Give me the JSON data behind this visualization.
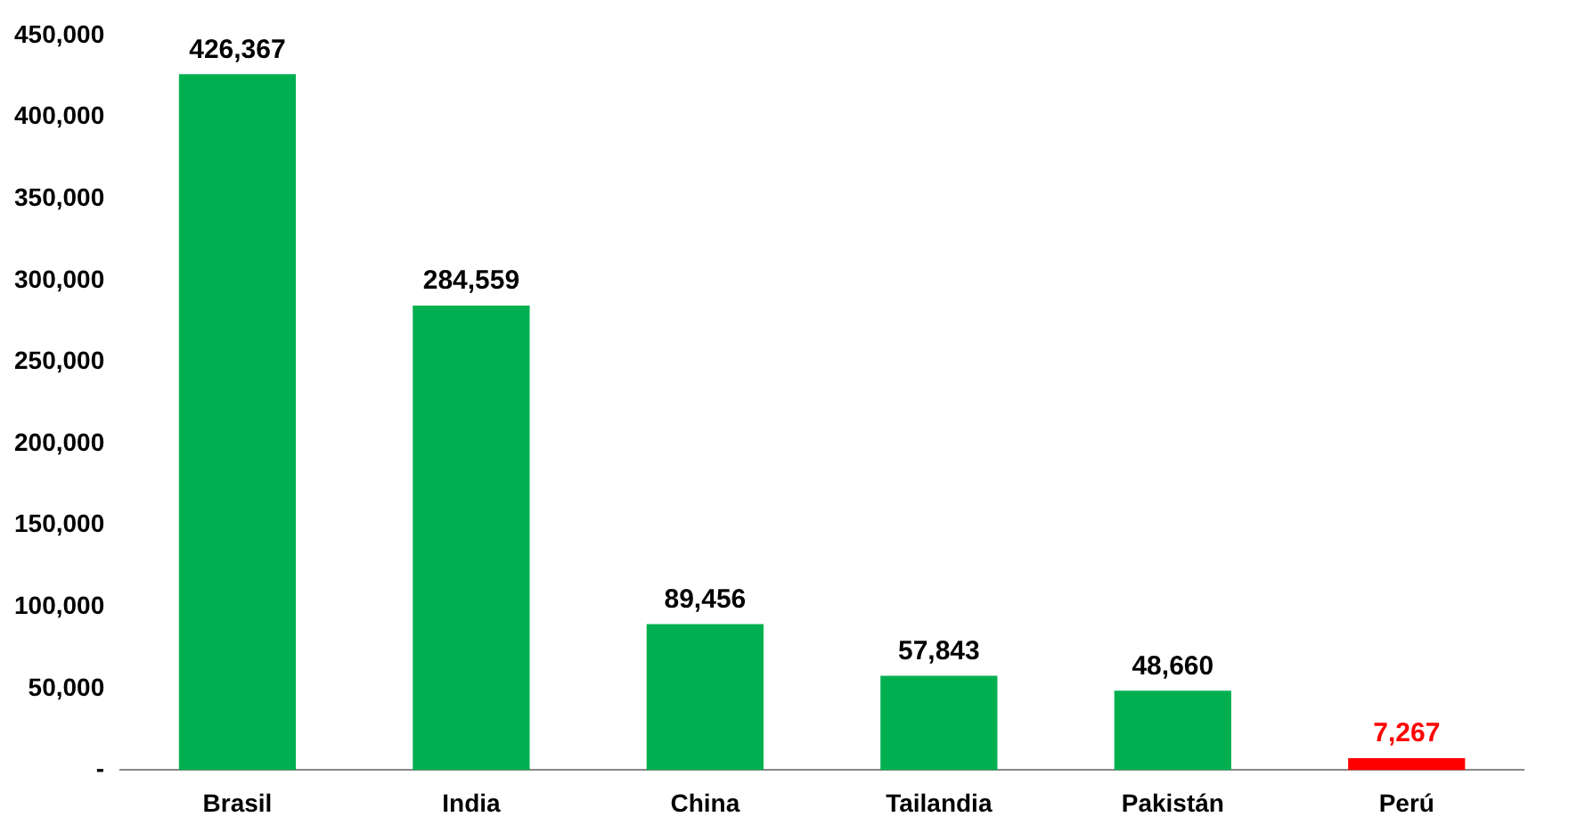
{
  "chart_data": {
    "type": "bar",
    "categories": [
      "Brasil",
      "India",
      "China",
      "Tailandia",
      "Pakistán",
      "Perú"
    ],
    "values": [
      426367,
      284559,
      89456,
      57843,
      48660,
      7267
    ],
    "colors": [
      "#00b050",
      "#00b050",
      "#00b050",
      "#00b050",
      "#00b050",
      "#ff0000"
    ],
    "value_labels": [
      "426,367",
      "284,559",
      "89,456",
      "57,843",
      "48,660",
      "7,267"
    ],
    "ylim": [
      0,
      450000
    ],
    "yticks": [
      {
        "value": 0,
        "label": "-"
      },
      {
        "value": 50000,
        "label": "50,000"
      },
      {
        "value": 100000,
        "label": "100,000"
      },
      {
        "value": 150000,
        "label": "150,000"
      },
      {
        "value": 200000,
        "label": "200,000"
      },
      {
        "value": 250000,
        "label": "250,000"
      },
      {
        "value": 300000,
        "label": "300,000"
      },
      {
        "value": 350000,
        "label": "350,000"
      },
      {
        "value": 400000,
        "label": "400,000"
      },
      {
        "value": 450000,
        "label": "450,000"
      }
    ],
    "grid": false,
    "legend": false
  }
}
